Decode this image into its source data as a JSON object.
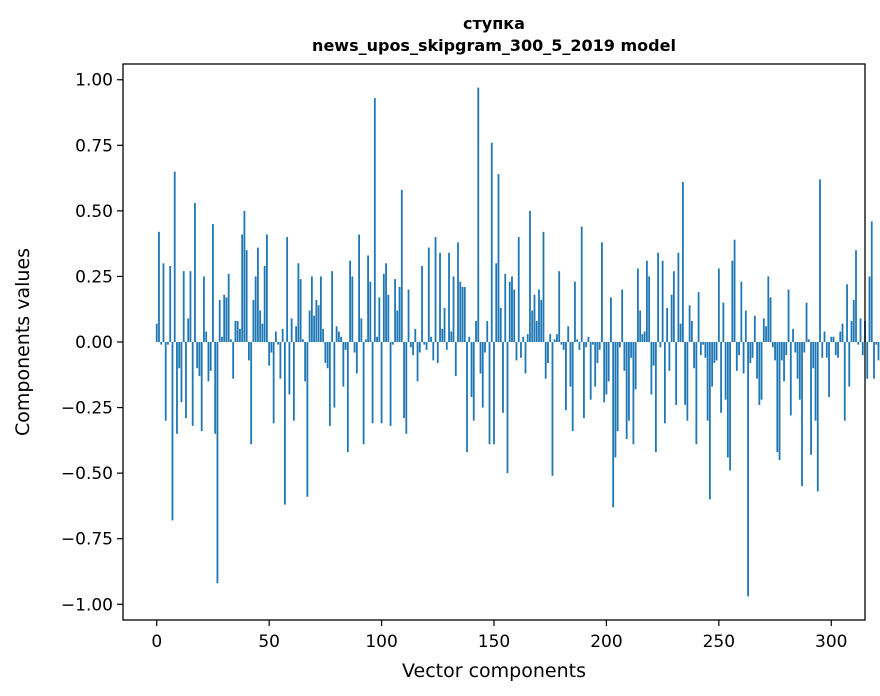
{
  "chart_data": {
    "type": "bar",
    "title_line1": "ступка",
    "title_line2": "news_upos_skipgram_300_5_2019 model",
    "xlabel": "Vector components",
    "ylabel": "Components values",
    "xlim": [
      -15,
      315
    ],
    "ylim": [
      -1.06,
      1.06
    ],
    "xticks": [
      0,
      50,
      100,
      150,
      200,
      250,
      300
    ],
    "yticks": [
      1.0,
      0.75,
      0.5,
      0.25,
      0.0,
      -0.25,
      -0.5,
      -0.75,
      -1.0
    ],
    "ytick_labels": [
      "1.00",
      "0.75",
      "0.50",
      "0.25",
      "0.00",
      "−0.25",
      "−0.50",
      "−0.75",
      "−1.00"
    ],
    "bar_color": "#1f77b4",
    "values": [
      0.07,
      0.42,
      -0.01,
      0.3,
      -0.3,
      -0.01,
      0.29,
      -0.68,
      0.65,
      -0.35,
      -0.1,
      -0.23,
      0.27,
      -0.29,
      0.09,
      0.27,
      -0.32,
      0.53,
      -0.1,
      -0.13,
      -0.34,
      0.25,
      0.04,
      -0.15,
      -0.11,
      0.45,
      -0.35,
      -0.92,
      0.16,
      0.02,
      0.18,
      0.17,
      0.26,
      0.01,
      -0.14,
      0.08,
      0.08,
      0.05,
      0.41,
      0.5,
      0.35,
      -0.07,
      -0.39,
      0.16,
      0.25,
      0.36,
      0.12,
      0.07,
      0.29,
      0.41,
      -0.09,
      -0.04,
      -0.31,
      0.04,
      -0.01,
      -0.14,
      0.05,
      -0.62,
      0.4,
      -0.2,
      0.09,
      -0.3,
      0.06,
      0.3,
      0.24,
      0.01,
      -0.15,
      -0.59,
      0.12,
      0.25,
      0.1,
      0.16,
      0.14,
      0.25,
      0.05,
      -0.08,
      -0.1,
      -0.32,
      0.27,
      -0.25,
      0.06,
      0.04,
      0.02,
      -0.17,
      -0.03,
      -0.42,
      0.31,
      0.25,
      -0.04,
      -0.12,
      0.41,
      0.09,
      -0.39,
      0.01,
      0.33,
      0.23,
      -0.31,
      0.93,
      0.02,
      0.17,
      -0.31,
      0.26,
      0.3,
      0.18,
      -0.32,
      -0.01,
      0.24,
      0.12,
      0.21,
      0.58,
      -0.29,
      -0.35,
      0.2,
      -0.02,
      -0.05,
      0.05,
      -0.15,
      -0.04,
      0.29,
      -0.01,
      -0.03,
      0.36,
      0.02,
      -0.07,
      0.4,
      -0.08,
      0.34,
      0.05,
      0.13,
      -0.03,
      0.34,
      0.04,
      0.25,
      -0.13,
      0.38,
      0.23,
      0.21,
      0.21,
      -0.42,
      0.02,
      -0.21,
      -0.3,
      0.08,
      0.97,
      -0.12,
      -0.25,
      -0.04,
      0.08,
      -0.39,
      0.76,
      -0.39,
      0.3,
      0.64,
      0.13,
      -0.27,
      0.26,
      -0.5,
      0.23,
      0.25,
      0.2,
      -0.07,
      0.4,
      -0.06,
      0.02,
      -0.12,
      0.03,
      0.5,
      0.12,
      0.18,
      0.08,
      0.2,
      0.16,
      0.42,
      -0.14,
      -0.08,
      0.03,
      -0.51,
      0.01,
      0.03,
      0.27,
      -0.01,
      -0.03,
      -0.26,
      0.06,
      -0.17,
      -0.34,
      0.23,
      0.01,
      -0.03,
      0.44,
      -0.29,
      -0.02,
      0.02,
      -0.22,
      -0.01,
      -0.17,
      -0.08,
      -0.03,
      0.38,
      -0.23,
      -0.2,
      -0.15,
      0.17,
      -0.63,
      -0.44,
      -0.34,
      -0.02,
      0.2,
      -0.11,
      -0.37,
      -0.3,
      -0.06,
      -0.39,
      -0.18,
      0.28,
      0.12,
      0.03,
      0.04,
      0.31,
      0.25,
      -0.2,
      -0.09,
      -0.42,
      0.34,
      -0.02,
      0.31,
      -0.31,
      0.13,
      -0.11,
      0.18,
      0.27,
      -0.24,
      0.34,
      0.07,
      0.61,
      -0.24,
      -0.3,
      0.14,
      0.08,
      -0.1,
      -0.39,
      0.19,
      -0.05,
      -0.01,
      -0.06,
      -0.3,
      -0.6,
      -0.17,
      -0.08,
      -0.07,
      0.28,
      -0.27,
      0.15,
      -0.22,
      -0.44,
      -0.49,
      0.31,
      0.39,
      -0.11,
      -0.05,
      0.23,
      -0.12,
      0.12,
      -0.97,
      -0.08,
      -0.06,
      0.1,
      -0.14,
      -0.24,
      -0.22,
      0.09,
      0.06,
      0.25,
      0.17,
      -0.02,
      -0.07,
      -0.42,
      -0.45,
      -0.07,
      -0.15,
      -0.05,
      0.2,
      -0.28,
      0.05,
      -0.04,
      -0.14,
      -0.22,
      -0.55,
      -0.04,
      0.15,
      0.01,
      -0.43,
      -0.1,
      -0.3,
      -0.57,
      0.62,
      -0.06,
      0.04,
      -0.06,
      -0.21,
      0.02,
      0.02,
      -0.05,
      -0.06,
      0.04,
      0.07,
      -0.3,
      0.22,
      -0.17,
      0.08,
      0.16,
      0.35,
      -0.01,
      0.09,
      -0.05,
      0.08,
      -0.14,
      0.25,
      0.46,
      -0.14,
      -0.01,
      -0.07
    ]
  }
}
